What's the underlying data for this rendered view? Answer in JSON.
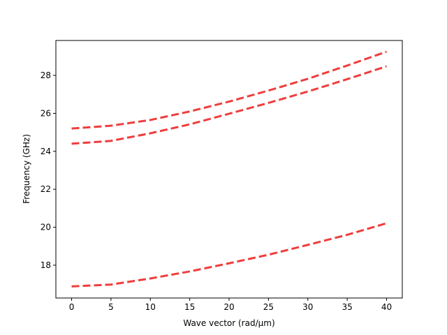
{
  "chart_data": {
    "type": "line",
    "x_label": "Wave vector (rad/μm)",
    "y_label": "Frequency (GHz)",
    "x": [
      0,
      5,
      10,
      15,
      20,
      25,
      30,
      35,
      40
    ],
    "series": [
      {
        "color": "#ee3333",
        "values": [
          25.2,
          25.35,
          25.65,
          26.1,
          26.62,
          27.2,
          27.82,
          28.52,
          29.25
        ]
      },
      {
        "color": "#ee3333",
        "values": [
          24.4,
          24.55,
          24.95,
          25.42,
          25.98,
          26.55,
          27.15,
          27.8,
          28.48
        ]
      },
      {
        "color": "#ee3333",
        "values": [
          16.88,
          16.98,
          17.3,
          17.67,
          18.1,
          18.55,
          19.07,
          19.6,
          20.21
        ]
      }
    ],
    "xlim": [
      -2,
      42
    ],
    "ylim": [
      16.27,
      29.84
    ],
    "xticks": [
      0,
      5,
      10,
      15,
      20,
      25,
      30,
      35,
      40
    ],
    "yticks": [
      18,
      20,
      22,
      24,
      26,
      28
    ],
    "grid": false
  }
}
